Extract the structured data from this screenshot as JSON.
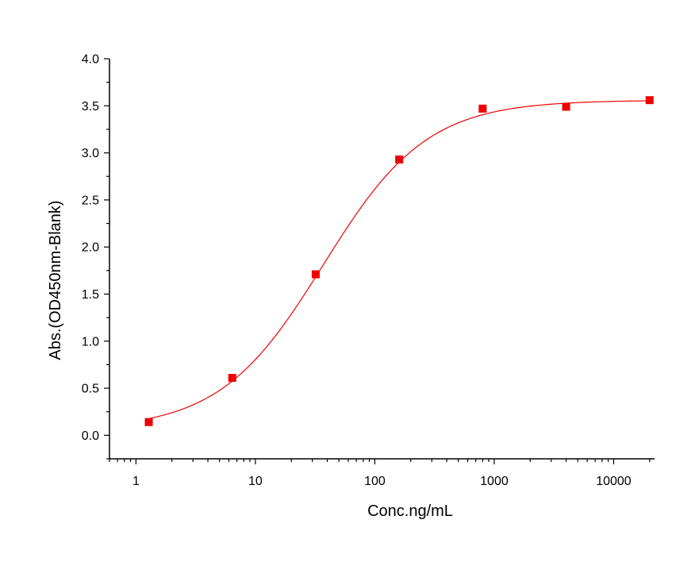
{
  "chart_data": {
    "type": "scatter",
    "xlabel": "Conc.ng/mL",
    "ylabel": "Abs.(OD450nm-Blank)",
    "x_scale": "log",
    "xlim": [
      0.6,
      22000
    ],
    "ylim": [
      -0.25,
      4.0
    ],
    "x_ticks": [
      {
        "value": 1,
        "label": "1"
      },
      {
        "value": 10,
        "label": "10"
      },
      {
        "value": 100,
        "label": "100"
      },
      {
        "value": 1000,
        "label": "1000"
      },
      {
        "value": 10000,
        "label": "10000"
      }
    ],
    "y_ticks": [
      {
        "value": 0.0,
        "label": "0.0"
      },
      {
        "value": 0.5,
        "label": "0.5"
      },
      {
        "value": 1.0,
        "label": "1.0"
      },
      {
        "value": 1.5,
        "label": "1.5"
      },
      {
        "value": 2.0,
        "label": "2.0"
      },
      {
        "value": 2.5,
        "label": "2.5"
      },
      {
        "value": 3.0,
        "label": "3.0"
      },
      {
        "value": 3.5,
        "label": "3.5"
      },
      {
        "value": 4.0,
        "label": "4.0"
      }
    ],
    "series": [
      {
        "points": [
          {
            "x": 1.28,
            "y": 0.14
          },
          {
            "x": 6.4,
            "y": 0.61
          },
          {
            "x": 32,
            "y": 1.71
          },
          {
            "x": 160,
            "y": 2.93
          },
          {
            "x": 800,
            "y": 3.47
          },
          {
            "x": 4000,
            "y": 3.49
          },
          {
            "x": 20000,
            "y": 3.56
          }
        ],
        "marker": "square",
        "color": "#ee0000"
      }
    ],
    "fit_curve": {
      "type": "4PL",
      "bottom": 0.06,
      "top": 3.56,
      "ec50": 37,
      "hill": 1.0,
      "color": "#ee0000"
    },
    "grid": false,
    "legend": "none"
  }
}
